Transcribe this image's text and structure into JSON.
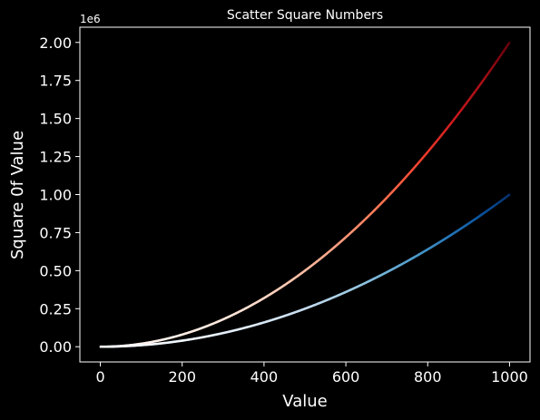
{
  "chart_data": {
    "type": "scatter",
    "title": "Scatter Square Numbers",
    "xlabel": "Value",
    "ylabel": "Square 0f Value",
    "offset_label": "1e6",
    "xlim": [
      -50,
      1050
    ],
    "ylim": [
      -0.1,
      2.1
    ],
    "y_scale_factor": 1000000,
    "x_ticks": [
      0,
      200,
      400,
      600,
      800,
      1000
    ],
    "x_tick_labels": [
      "0",
      "200",
      "400",
      "600",
      "800",
      "1000"
    ],
    "y_ticks": [
      0.0,
      0.25,
      0.5,
      0.75,
      1.0,
      1.25,
      1.5,
      1.75,
      2.0
    ],
    "y_tick_labels": [
      "0.00",
      "0.25",
      "0.50",
      "0.75",
      "1.00",
      "1.25",
      "1.50",
      "1.75",
      "2.00"
    ],
    "grid": false,
    "background": "#000000",
    "series": [
      {
        "formula": "y = 2*x^2",
        "x_range": [
          1,
          1000
        ],
        "colormap": "Reds",
        "y_max": 2000000
      },
      {
        "formula": "y = x^2",
        "x_range": [
          1,
          1000
        ],
        "colormap": "Blues",
        "y_max": 1000000
      }
    ]
  }
}
